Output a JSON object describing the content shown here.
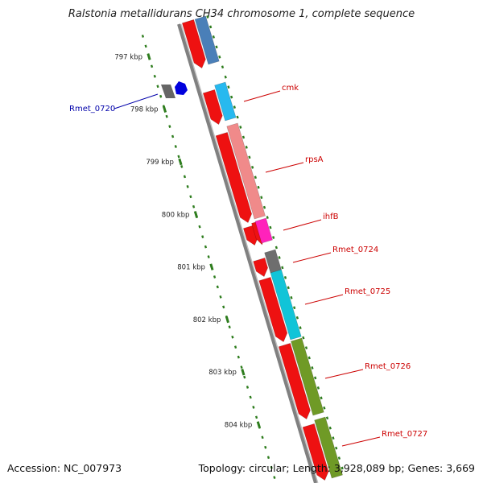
{
  "title": "Ralstonia metallidurans CH34 chromosome 1, complete sequence",
  "accession": "Accession: NC_007973",
  "topology": "Topology: circular; Length: 3,928,089 bp; Genes: 3,669",
  "colors": {
    "backbone": "#808080",
    "tick": "#2e7d1e",
    "label_red": "#cc0000",
    "label_blue": "#0000aa",
    "orf": "#ee1111"
  },
  "kbp_ticks": [
    {
      "label": "797 kbp",
      "kb": 797
    },
    {
      "label": "798 kbp",
      "kb": 798
    },
    {
      "label": "799 kbp",
      "kb": 799
    },
    {
      "label": "800 kbp",
      "kb": 800
    },
    {
      "label": "801 kbp",
      "kb": 801
    },
    {
      "label": "802 kbp",
      "kb": 802
    },
    {
      "label": "803 kbp",
      "kb": 803
    },
    {
      "label": "804 kbp",
      "kb": 804
    }
  ],
  "gene_labels": [
    {
      "name": "cmk",
      "color": "red"
    },
    {
      "name": "rpsA",
      "color": "red"
    },
    {
      "name": "ihfB",
      "color": "red"
    },
    {
      "name": "Rmet_0724",
      "color": "red"
    },
    {
      "name": "Rmet_0725",
      "color": "red"
    },
    {
      "name": "Rmet_0726",
      "color": "red"
    },
    {
      "name": "Rmet_0727",
      "color": "red"
    },
    {
      "name": "Rmet_0720",
      "color": "blue"
    }
  ]
}
